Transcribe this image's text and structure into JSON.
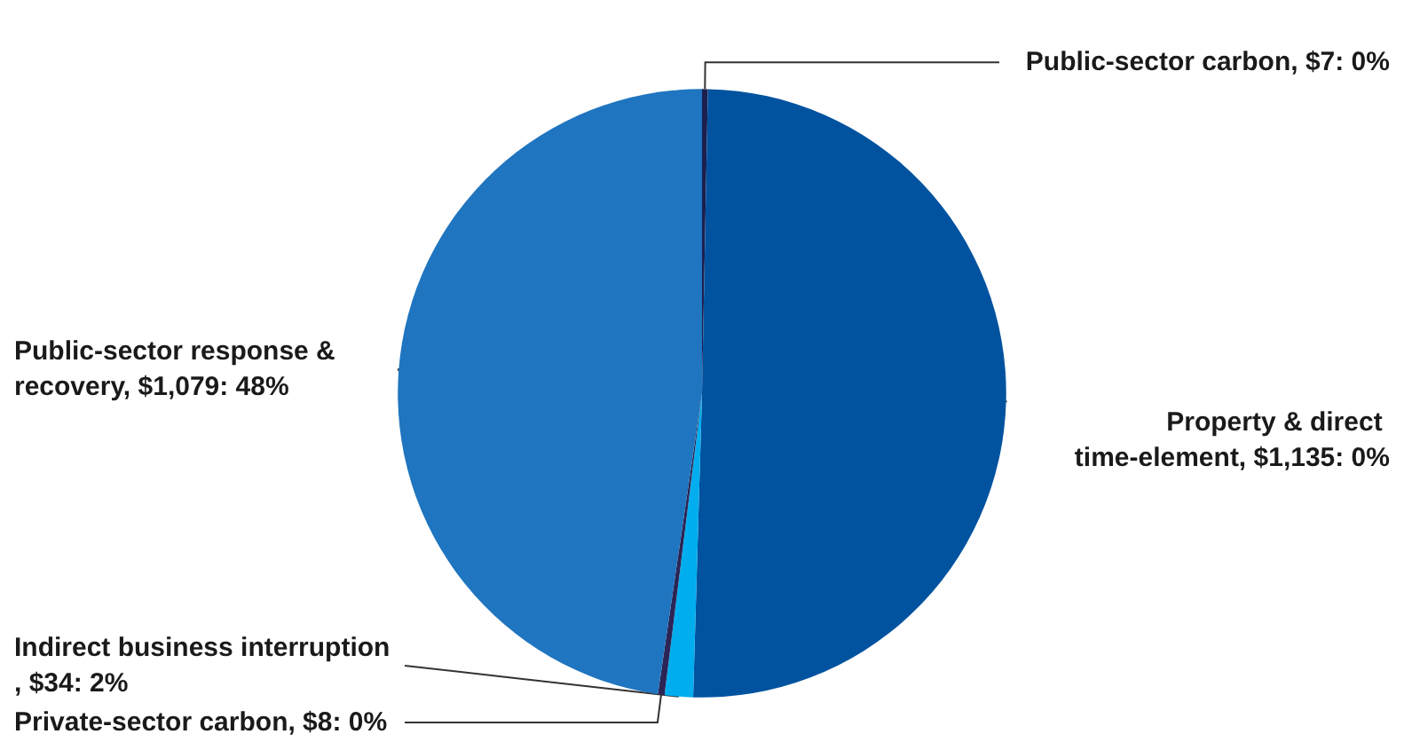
{
  "chart_data": {
    "type": "pie",
    "categories": [
      "Public-sector carbon, $7: 0%",
      "Property & direct time-element, $1,135: 0%",
      "Indirect business interruption, $34: 2%",
      "Private-sector carbon, $8: 0%",
      "Public-sector response & recovery, $1,079: 48%"
    ],
    "values": [
      7,
      1135,
      34,
      8,
      1079
    ],
    "colors": [
      "#1d1f4f",
      "#0153a0",
      "#00aeef",
      "#2a2556",
      "#1f75bf"
    ]
  }
}
